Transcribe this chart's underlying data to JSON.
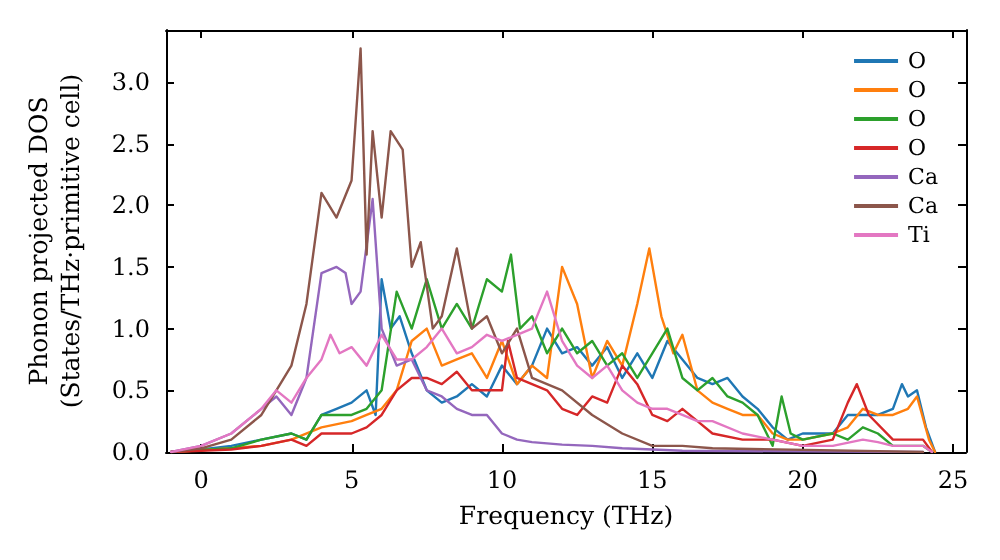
{
  "chart_data": {
    "type": "line",
    "xlabel": "Frequency (THz)",
    "ylabel": "Phonon projected DOS\n(States/THz·primitive cell)",
    "xlim": [
      -1.17,
      25.43
    ],
    "xticks": [
      0,
      5,
      10,
      15,
      20,
      25
    ],
    "ylim": [
      0,
      3.42
    ],
    "yticks": [
      {
        "value": 0,
        "label": "0.0"
      },
      0.5,
      {
        "value": 1,
        "label": "1.0"
      },
      1.5,
      {
        "value": 2,
        "label": "2.0"
      },
      2.5,
      {
        "value": 3,
        "label": "3.0"
      }
    ],
    "legend": "top right",
    "grid": false,
    "line_style": "solid",
    "series": [
      {
        "name": "O",
        "color": "#1f77b4",
        "x": [
          -1,
          0,
          1,
          2,
          3,
          3.5,
          4,
          4.5,
          5,
          5.5,
          5.8,
          6,
          6.3,
          6.6,
          7,
          7.5,
          8,
          8.5,
          9,
          9.5,
          10,
          10.5,
          11,
          11.5,
          12,
          12.5,
          13,
          13.5,
          14,
          14.5,
          15,
          15.5,
          16,
          16.5,
          17,
          17.5,
          18,
          18.5,
          19,
          19.5,
          20,
          21,
          21.5,
          22,
          22.5,
          23,
          23.3,
          23.5,
          23.8,
          24.1,
          24.4
        ],
        "values": [
          0,
          0.02,
          0.05,
          0.1,
          0.15,
          0.1,
          0.3,
          0.35,
          0.4,
          0.5,
          0.3,
          1.4,
          1.0,
          1.1,
          0.8,
          0.5,
          0.4,
          0.45,
          0.55,
          0.45,
          0.7,
          0.55,
          0.7,
          1.0,
          0.8,
          0.85,
          0.7,
          0.85,
          0.6,
          0.8,
          0.6,
          0.9,
          0.75,
          0.6,
          0.55,
          0.6,
          0.45,
          0.35,
          0.2,
          0.1,
          0.15,
          0.15,
          0.3,
          0.3,
          0.3,
          0.35,
          0.55,
          0.45,
          0.5,
          0.2,
          0
        ]
      },
      {
        "name": "O",
        "color": "#ff7f0e",
        "x": [
          -1,
          1,
          2,
          3,
          4,
          5,
          5.5,
          6,
          6.5,
          7,
          7.5,
          8,
          8.5,
          9,
          9.5,
          10,
          10.5,
          11,
          11.5,
          12,
          12.5,
          13,
          13.5,
          14,
          14.5,
          14.9,
          15.3,
          15.7,
          16,
          16.5,
          17,
          17.5,
          18,
          18.5,
          19,
          19.5,
          20,
          21,
          21.5,
          22,
          22.5,
          23,
          23.5,
          23.8,
          24.2,
          24.4
        ],
        "values": [
          0,
          0.03,
          0.05,
          0.1,
          0.2,
          0.25,
          0.3,
          0.35,
          0.5,
          0.9,
          1.0,
          0.7,
          0.75,
          0.8,
          0.6,
          0.9,
          0.55,
          0.7,
          0.6,
          1.5,
          1.2,
          0.6,
          0.9,
          0.7,
          1.2,
          1.65,
          1.1,
          0.8,
          0.95,
          0.5,
          0.4,
          0.35,
          0.3,
          0.3,
          0.15,
          0.1,
          0.1,
          0.15,
          0.2,
          0.35,
          0.3,
          0.3,
          0.35,
          0.45,
          0.1,
          0
        ]
      },
      {
        "name": "O",
        "color": "#2ca02c",
        "x": [
          -1,
          1,
          2,
          3,
          3.5,
          4,
          4.5,
          5,
          5.5,
          6,
          6.5,
          7,
          7.5,
          8,
          8.5,
          9,
          9.5,
          10,
          10.3,
          10.6,
          11,
          11.5,
          12,
          12.5,
          13,
          13.5,
          14,
          14.5,
          15,
          15.5,
          16,
          16.5,
          17,
          17.5,
          18,
          18.5,
          19,
          19.3,
          19.6,
          20,
          21,
          21.5,
          22,
          22.5,
          23,
          24,
          24.3
        ],
        "values": [
          0,
          0.03,
          0.1,
          0.15,
          0.1,
          0.3,
          0.3,
          0.3,
          0.35,
          0.5,
          1.3,
          1.0,
          1.4,
          1.0,
          1.2,
          1.0,
          1.4,
          1.3,
          1.6,
          1.0,
          1.1,
          0.8,
          1.0,
          0.8,
          0.9,
          0.7,
          0.8,
          0.6,
          0.8,
          1.0,
          0.6,
          0.5,
          0.6,
          0.45,
          0.4,
          0.3,
          0.05,
          0.45,
          0.15,
          0.1,
          0.15,
          0.1,
          0.2,
          0.15,
          0.05,
          0.05,
          0
        ]
      },
      {
        "name": "O",
        "color": "#d62728",
        "x": [
          -1,
          1,
          2,
          3,
          3.5,
          4,
          5,
          5.5,
          6,
          6.5,
          7,
          7.5,
          8,
          8.5,
          9,
          10,
          10.2,
          10.5,
          11,
          11.5,
          12,
          12.5,
          13,
          13.5,
          14,
          14.5,
          15,
          15.5,
          16,
          16.5,
          17,
          18,
          19,
          20,
          21,
          21.5,
          21.8,
          22.2,
          23,
          24,
          24.3
        ],
        "values": [
          0,
          0.02,
          0.05,
          0.1,
          0.05,
          0.15,
          0.15,
          0.2,
          0.3,
          0.5,
          0.6,
          0.6,
          0.55,
          0.65,
          0.5,
          0.5,
          0.9,
          0.6,
          0.55,
          0.5,
          0.35,
          0.3,
          0.45,
          0.4,
          0.7,
          0.55,
          0.3,
          0.25,
          0.35,
          0.25,
          0.15,
          0.1,
          0.1,
          0.05,
          0.1,
          0.4,
          0.55,
          0.3,
          0.1,
          0.1,
          0
        ]
      },
      {
        "name": "Ca",
        "color": "#9467bd",
        "x": [
          -1,
          0,
          1,
          2,
          2.5,
          3,
          3.5,
          4,
          4.5,
          4.8,
          5,
          5.3,
          5.7,
          6,
          6.5,
          7,
          7.5,
          8,
          8.5,
          9,
          9.5,
          10,
          10.5,
          11,
          12,
          13,
          14,
          15,
          16,
          24
        ],
        "values": [
          0,
          0.05,
          0.15,
          0.35,
          0.45,
          0.3,
          0.6,
          1.45,
          1.5,
          1.45,
          1.2,
          1.3,
          2.05,
          1.0,
          0.7,
          0.75,
          0.5,
          0.45,
          0.35,
          0.3,
          0.3,
          0.15,
          0.1,
          0.08,
          0.06,
          0.05,
          0.03,
          0.02,
          0.01,
          0
        ]
      },
      {
        "name": "Ca",
        "color": "#8c564b",
        "x": [
          -1,
          0,
          1,
          2,
          2.5,
          3,
          3.5,
          4,
          4.5,
          5,
          5.3,
          5.5,
          5.7,
          6,
          6.3,
          6.7,
          7,
          7.3,
          7.7,
          8,
          8.5,
          9,
          9.5,
          10,
          10.5,
          11,
          12,
          13,
          14,
          15,
          16,
          17,
          24
        ],
        "values": [
          0,
          0.03,
          0.1,
          0.3,
          0.5,
          0.7,
          1.2,
          2.1,
          1.9,
          2.2,
          3.27,
          1.6,
          2.6,
          1.9,
          2.6,
          2.45,
          1.5,
          1.7,
          1.0,
          1.1,
          1.65,
          1.0,
          1.1,
          0.8,
          1.0,
          0.6,
          0.5,
          0.3,
          0.15,
          0.05,
          0.05,
          0.03,
          0
        ]
      },
      {
        "name": "Ti",
        "color": "#e377c2",
        "x": [
          -1,
          0,
          1,
          2,
          2.5,
          3,
          3.5,
          4,
          4.3,
          4.6,
          5,
          5.5,
          6,
          6.5,
          7,
          7.5,
          8,
          8.5,
          9,
          9.5,
          10,
          10.5,
          11,
          11.5,
          12,
          12.5,
          13,
          13.5,
          14,
          14.5,
          15,
          15.5,
          16,
          16.5,
          17,
          18,
          19,
          20,
          21,
          22,
          22.5,
          23,
          24,
          24.3
        ],
        "values": [
          0,
          0.05,
          0.15,
          0.35,
          0.5,
          0.4,
          0.6,
          0.75,
          0.95,
          0.8,
          0.85,
          0.7,
          0.95,
          0.75,
          0.75,
          0.85,
          1.0,
          0.8,
          0.85,
          0.95,
          0.9,
          0.95,
          1.0,
          1.3,
          0.9,
          0.7,
          0.6,
          0.7,
          0.5,
          0.4,
          0.35,
          0.35,
          0.3,
          0.25,
          0.25,
          0.15,
          0.1,
          0.05,
          0.05,
          0.1,
          0.08,
          0.05,
          0.05,
          0
        ]
      }
    ]
  }
}
